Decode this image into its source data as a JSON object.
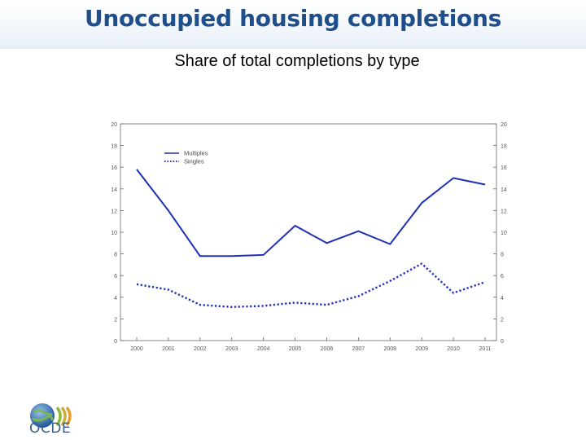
{
  "header": {
    "title": "Unoccupied housing completions",
    "subtitle": "Share of total completions by type"
  },
  "logo": {
    "text": "OCDE",
    "icon": "oecd-globe-logo"
  },
  "colors": {
    "title": "#1f4e8c",
    "series": "#1e2fb8",
    "axis": "#666666"
  },
  "chart_data": {
    "type": "line",
    "title": "",
    "xlabel": "",
    "ylabel": "",
    "x": [
      "2000",
      "2001",
      "2002",
      "2003",
      "2004",
      "2005",
      "2006",
      "2007",
      "2008",
      "2009",
      "2010",
      "2011"
    ],
    "ylim": [
      0,
      20
    ],
    "yticks": [
      0,
      2,
      4,
      6,
      8,
      10,
      12,
      14,
      16,
      18,
      20
    ],
    "y_axis_right_mirror": true,
    "grid": false,
    "legend_position": "top-left",
    "series": [
      {
        "name": "Multiples",
        "style": "solid",
        "values": [
          15.8,
          12.0,
          7.8,
          7.8,
          7.9,
          10.6,
          9.0,
          10.1,
          8.9,
          12.7,
          15.0,
          14.4
        ]
      },
      {
        "name": "Singles",
        "style": "dotted",
        "values": [
          5.2,
          4.7,
          3.3,
          3.1,
          3.2,
          3.5,
          3.3,
          4.1,
          5.5,
          7.1,
          4.4,
          5.4
        ]
      }
    ]
  }
}
